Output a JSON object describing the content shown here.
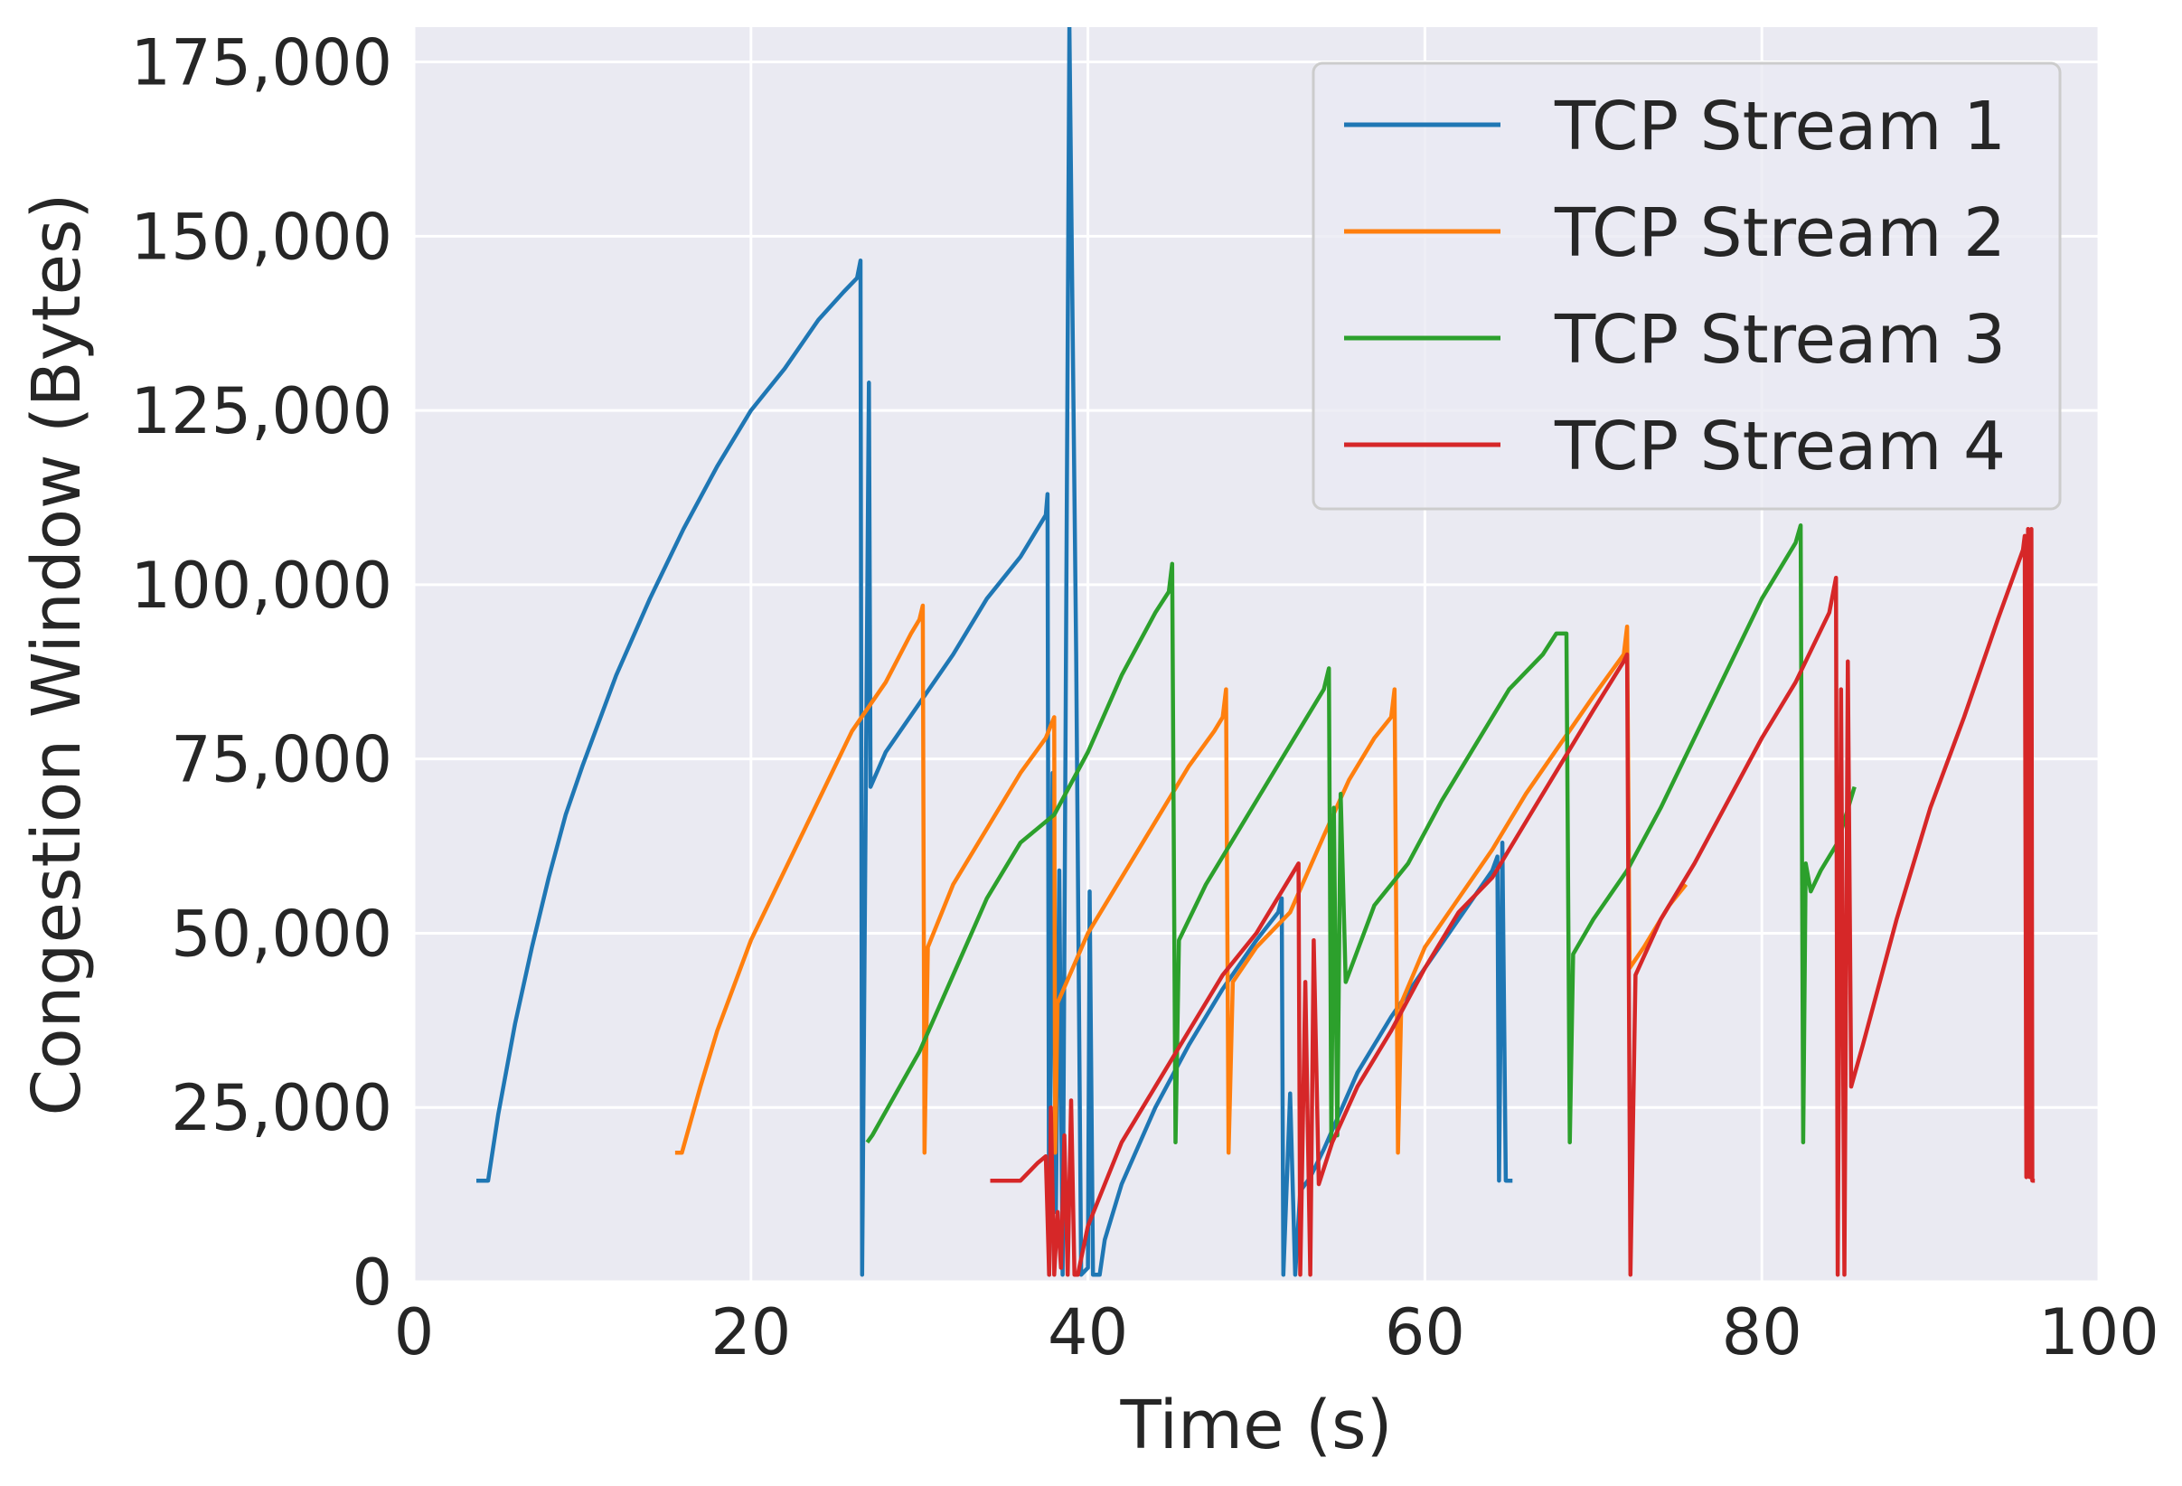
{
  "chart_data": {
    "type": "line",
    "title": "",
    "xlabel": "Time (s)",
    "ylabel": "Congestion Window (Bytes)",
    "xlim": [
      0,
      100
    ],
    "ylim": [
      0,
      180000
    ],
    "x_ticks": [
      0,
      20,
      40,
      60,
      80,
      100
    ],
    "x_tick_labels": [
      "0",
      "20",
      "40",
      "60",
      "80",
      "100"
    ],
    "y_ticks": [
      0,
      25000,
      50000,
      75000,
      100000,
      125000,
      150000,
      175000
    ],
    "y_tick_labels": [
      "0",
      "25,000",
      "50,000",
      "75,000",
      "100,000",
      "125,000",
      "150,000",
      "175,000"
    ],
    "grid": true,
    "legend_position": "top-right",
    "colors": {
      "plot_background": "#eaeaf2",
      "grid": "#ffffff",
      "text": "#262626",
      "legend_border": "#cccccc"
    },
    "series": [
      {
        "name": "TCP Stream 1",
        "color": "#1f77b4",
        "points": [
          [
            3.7,
            14500
          ],
          [
            4.4,
            14500
          ],
          [
            5.0,
            24000
          ],
          [
            6.0,
            37000
          ],
          [
            7.0,
            48000
          ],
          [
            8.0,
            58000
          ],
          [
            9.0,
            67000
          ],
          [
            10.0,
            74000
          ],
          [
            12.0,
            87000
          ],
          [
            14.0,
            98000
          ],
          [
            16.0,
            108000
          ],
          [
            18.0,
            117000
          ],
          [
            20.0,
            125000
          ],
          [
            22.0,
            131000
          ],
          [
            24.0,
            138000
          ],
          [
            25.5,
            142000
          ],
          [
            26.3,
            144000
          ],
          [
            26.5,
            146500
          ],
          [
            26.6,
            1000
          ],
          [
            26.8,
            66000
          ],
          [
            27.0,
            129000
          ],
          [
            27.1,
            71000
          ],
          [
            28.0,
            76000
          ],
          [
            30.0,
            83000
          ],
          [
            32.0,
            90000
          ],
          [
            34.0,
            98000
          ],
          [
            36.0,
            104000
          ],
          [
            37.5,
            110000
          ],
          [
            37.6,
            113000
          ],
          [
            37.7,
            1000
          ],
          [
            37.9,
            73000
          ],
          [
            38.1,
            10000
          ],
          [
            38.3,
            59000
          ],
          [
            38.5,
            1000
          ],
          [
            38.9,
            180000
          ],
          [
            39.3,
            90000
          ],
          [
            39.6,
            1000
          ],
          [
            40.0,
            2000
          ],
          [
            40.1,
            56000
          ],
          [
            40.3,
            1000
          ],
          [
            40.7,
            1000
          ],
          [
            41.0,
            6000
          ],
          [
            42.0,
            14000
          ],
          [
            44.0,
            25000
          ],
          [
            46.0,
            34000
          ],
          [
            48.0,
            42000
          ],
          [
            50.0,
            49000
          ],
          [
            51.3,
            53000
          ],
          [
            51.5,
            55000
          ],
          [
            51.6,
            1000
          ],
          [
            52.0,
            27000
          ],
          [
            52.3,
            1000
          ],
          [
            52.6,
            13000
          ],
          [
            53.2,
            15000
          ],
          [
            54.0,
            19000
          ],
          [
            56.0,
            30000
          ],
          [
            58.0,
            38000
          ],
          [
            60.0,
            45000
          ],
          [
            62.0,
            52000
          ],
          [
            64.0,
            59000
          ],
          [
            64.3,
            61000
          ],
          [
            64.4,
            14500
          ],
          [
            64.6,
            63000
          ],
          [
            64.8,
            14500
          ],
          [
            65.2,
            14500
          ]
        ]
      },
      {
        "name": "TCP Stream 2",
        "color": "#ff7f0e",
        "points": [
          [
            15.5,
            18500
          ],
          [
            15.9,
            18500
          ],
          [
            17.0,
            28000
          ],
          [
            18.0,
            36000
          ],
          [
            20.0,
            49000
          ],
          [
            22.0,
            59000
          ],
          [
            24.0,
            69000
          ],
          [
            26.0,
            79000
          ],
          [
            28.0,
            86000
          ],
          [
            29.5,
            93000
          ],
          [
            30.0,
            95000
          ],
          [
            30.2,
            97000
          ],
          [
            30.3,
            18500
          ],
          [
            30.5,
            48000
          ],
          [
            32.0,
            57000
          ],
          [
            34.0,
            65000
          ],
          [
            36.0,
            73000
          ],
          [
            37.5,
            78000
          ],
          [
            38.0,
            81000
          ],
          [
            38.05,
            18500
          ],
          [
            38.2,
            40000
          ],
          [
            40.0,
            50000
          ],
          [
            42.0,
            58000
          ],
          [
            44.0,
            66000
          ],
          [
            46.0,
            74000
          ],
          [
            47.5,
            79000
          ],
          [
            48.0,
            81000
          ],
          [
            48.2,
            85000
          ],
          [
            48.35,
            18500
          ],
          [
            48.6,
            43000
          ],
          [
            50.0,
            48000
          ],
          [
            52.0,
            53000
          ],
          [
            54.0,
            64000
          ],
          [
            55.5,
            72000
          ],
          [
            57.0,
            78000
          ],
          [
            58.0,
            81000
          ],
          [
            58.2,
            85000
          ],
          [
            58.4,
            18500
          ],
          [
            58.6,
            40000
          ],
          [
            60.0,
            48000
          ],
          [
            62.0,
            55000
          ],
          [
            64.0,
            62000
          ],
          [
            66.0,
            70000
          ],
          [
            68.0,
            77000
          ],
          [
            70.0,
            84000
          ],
          [
            71.8,
            90000
          ],
          [
            72.0,
            94000
          ],
          [
            72.15,
            45000
          ],
          [
            73.0,
            48000
          ],
          [
            74.5,
            54000
          ],
          [
            75.5,
            57000
          ]
        ]
      },
      {
        "name": "TCP Stream 3",
        "color": "#2ca02c",
        "points": [
          [
            26.9,
            20000
          ],
          [
            27.2,
            21000
          ],
          [
            30.0,
            33000
          ],
          [
            32.0,
            44000
          ],
          [
            34.0,
            55000
          ],
          [
            36.0,
            63000
          ],
          [
            38.0,
            67000
          ],
          [
            40.0,
            76000
          ],
          [
            42.0,
            87000
          ],
          [
            44.0,
            96000
          ],
          [
            44.8,
            99000
          ],
          [
            45.0,
            103000
          ],
          [
            45.2,
            20000
          ],
          [
            45.4,
            49000
          ],
          [
            47.0,
            57000
          ],
          [
            49.0,
            65000
          ],
          [
            51.0,
            73000
          ],
          [
            53.0,
            81000
          ],
          [
            54.0,
            85000
          ],
          [
            54.3,
            88000
          ],
          [
            54.45,
            20000
          ],
          [
            54.6,
            68000
          ],
          [
            54.8,
            21000
          ],
          [
            55.0,
            70000
          ],
          [
            55.3,
            43000
          ],
          [
            57.0,
            54000
          ],
          [
            59.0,
            60000
          ],
          [
            61.0,
            69000
          ],
          [
            63.0,
            77000
          ],
          [
            65.0,
            85000
          ],
          [
            67.0,
            90000
          ],
          [
            67.8,
            93000
          ],
          [
            68.4,
            93000
          ],
          [
            68.6,
            20000
          ],
          [
            68.8,
            47000
          ],
          [
            70.0,
            52000
          ],
          [
            72.0,
            59000
          ],
          [
            74.0,
            68000
          ],
          [
            76.0,
            78000
          ],
          [
            78.0,
            88000
          ],
          [
            80.0,
            98000
          ],
          [
            82.0,
            106000
          ],
          [
            82.3,
            108500
          ],
          [
            82.45,
            20000
          ],
          [
            82.6,
            60000
          ],
          [
            82.9,
            56000
          ],
          [
            83.5,
            59000
          ],
          [
            84.5,
            63000
          ],
          [
            85.5,
            71000
          ]
        ]
      },
      {
        "name": "TCP Stream 4",
        "color": "#d62728",
        "points": [
          [
            34.2,
            14500
          ],
          [
            36.0,
            14500
          ],
          [
            37.0,
            17000
          ],
          [
            37.5,
            18000
          ],
          [
            37.7,
            1000
          ],
          [
            37.8,
            25000
          ],
          [
            38.0,
            1000
          ],
          [
            38.2,
            10000
          ],
          [
            38.4,
            2000
          ],
          [
            38.6,
            21000
          ],
          [
            38.8,
            1000
          ],
          [
            39.0,
            26000
          ],
          [
            39.2,
            1000
          ],
          [
            39.4,
            1000
          ],
          [
            40.0,
            8000
          ],
          [
            42.0,
            20000
          ],
          [
            44.0,
            28000
          ],
          [
            46.0,
            36000
          ],
          [
            48.0,
            44000
          ],
          [
            50.0,
            50000
          ],
          [
            52.0,
            58000
          ],
          [
            52.5,
            60000
          ],
          [
            52.6,
            1000
          ],
          [
            52.9,
            43000
          ],
          [
            53.2,
            1000
          ],
          [
            53.4,
            49000
          ],
          [
            53.7,
            14000
          ],
          [
            54.5,
            20000
          ],
          [
            56.0,
            28000
          ],
          [
            58.0,
            36000
          ],
          [
            60.0,
            45000
          ],
          [
            62.0,
            53000
          ],
          [
            64.0,
            58000
          ],
          [
            66.0,
            66000
          ],
          [
            68.0,
            74000
          ],
          [
            70.0,
            82000
          ],
          [
            71.8,
            89000
          ],
          [
            72.0,
            90000
          ],
          [
            72.2,
            1000
          ],
          [
            72.5,
            44000
          ],
          [
            74.0,
            52000
          ],
          [
            76.0,
            60000
          ],
          [
            78.0,
            69000
          ],
          [
            80.0,
            78000
          ],
          [
            82.0,
            86000
          ],
          [
            84.0,
            96000
          ],
          [
            84.4,
            101000
          ],
          [
            84.5,
            1000
          ],
          [
            84.7,
            85000
          ],
          [
            84.9,
            1000
          ],
          [
            85.1,
            89000
          ],
          [
            85.3,
            28000
          ],
          [
            86.0,
            34000
          ],
          [
            88.0,
            52000
          ],
          [
            90.0,
            68000
          ],
          [
            92.0,
            81000
          ],
          [
            94.0,
            95000
          ],
          [
            95.5,
            105000
          ],
          [
            95.6,
            107000
          ],
          [
            95.7,
            15000
          ],
          [
            95.8,
            108000
          ],
          [
            95.9,
            15000
          ],
          [
            96.0,
            108000
          ],
          [
            96.05,
            14500
          ],
          [
            96.2,
            14500
          ]
        ]
      }
    ]
  }
}
